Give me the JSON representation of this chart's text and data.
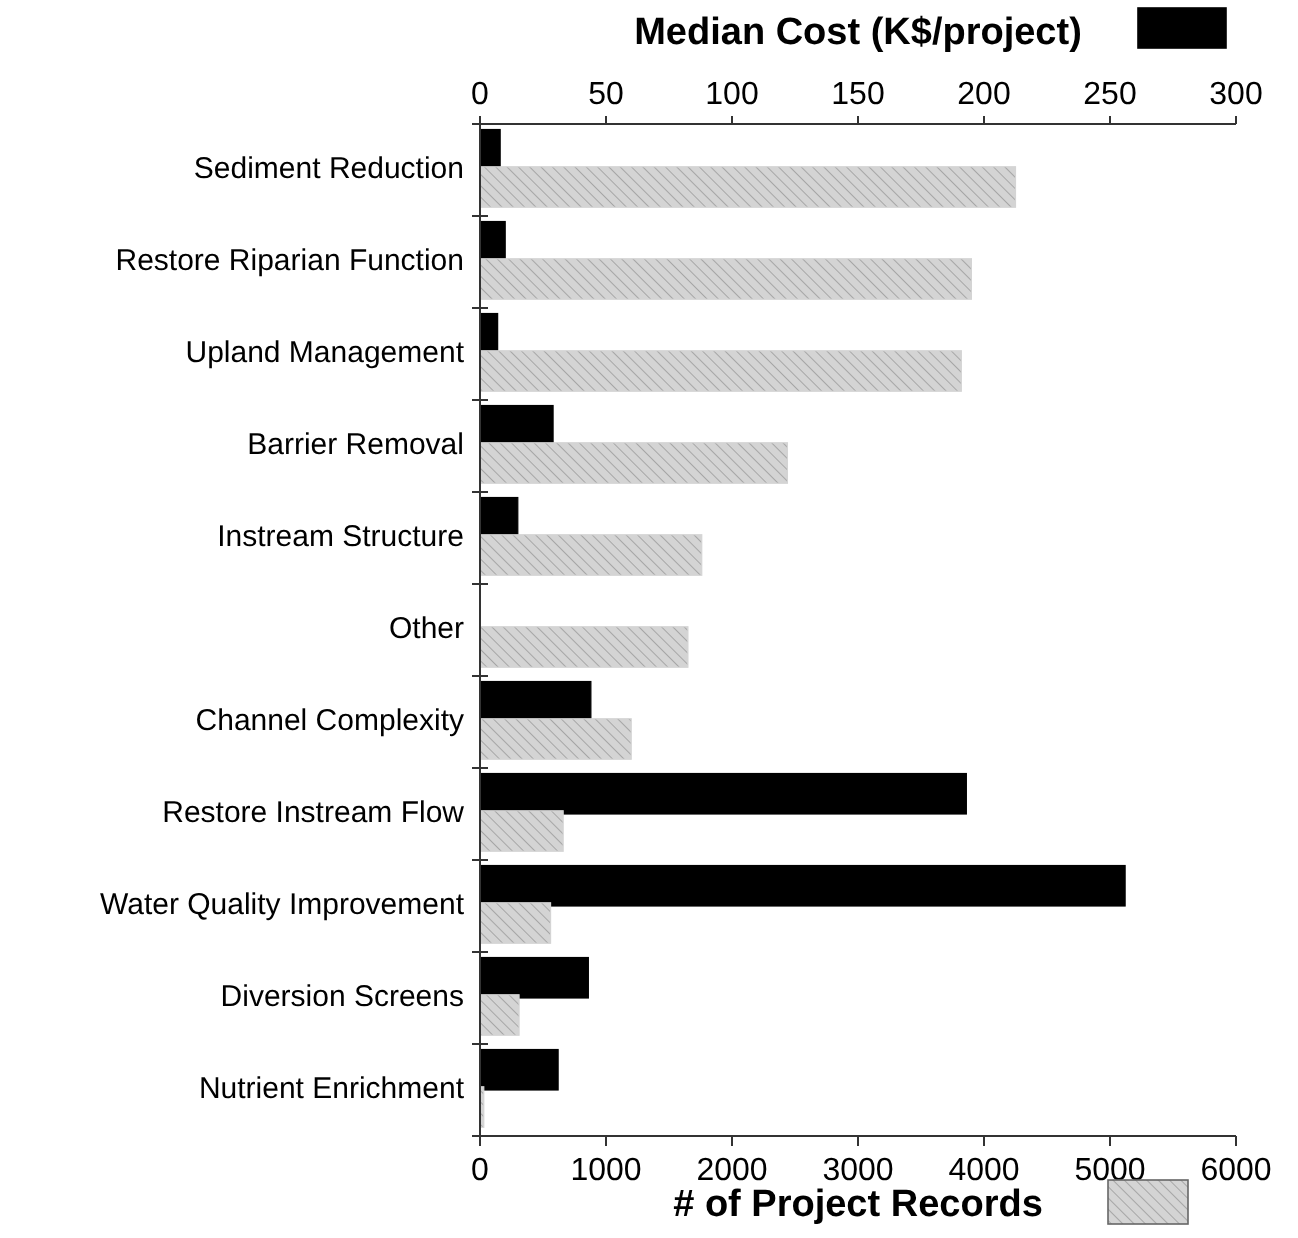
{
  "chart_data": {
    "type": "bar",
    "orientation": "horizontal",
    "categories": [
      "Sediment Reduction",
      "Restore Riparian Function",
      "Upland Management",
      "Barrier Removal",
      "Instream Structure",
      "Other",
      "Channel Complexity",
      "Restore Instream Flow",
      "Water Quality Improvement",
      "Diversion Screens",
      "Nutrient Enrichment"
    ],
    "series": [
      {
        "name": "Median Cost (K$/project)",
        "color": "#000000",
        "axis": "x2",
        "values": [
          8,
          10,
          7,
          29,
          15,
          null,
          44,
          193,
          256,
          43,
          31
        ]
      },
      {
        "name": "# of Project Records",
        "color": "#d4d4d4",
        "values": [
          4250,
          3900,
          3820,
          2440,
          1760,
          1650,
          1200,
          660,
          560,
          310,
          30
        ]
      }
    ],
    "xlim": [
      0,
      6000
    ],
    "xticks": [
      0,
      1000,
      2000,
      3000,
      4000,
      5000,
      6000
    ],
    "x2lim": [
      0,
      300
    ],
    "x2ticks": [
      0,
      50,
      100,
      150,
      200,
      250,
      300
    ],
    "grid": false,
    "legend": "top"
  }
}
